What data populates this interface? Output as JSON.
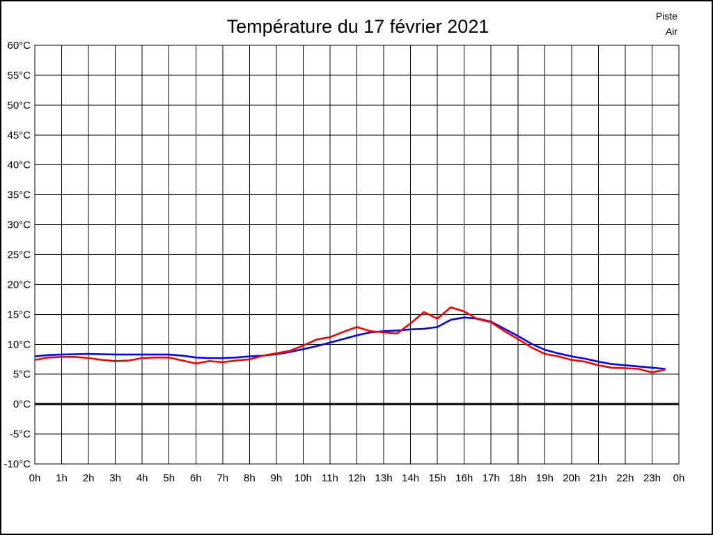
{
  "page": {
    "background": "#ffffff",
    "border_color": "#000000"
  },
  "chart_data": {
    "type": "line",
    "title": "Température du 17 février 2021",
    "grid": true,
    "legend_position": "top-right",
    "xlim": [
      0,
      24
    ],
    "ylim": [
      -10,
      60
    ],
    "x_axis": {
      "tick_values": [
        0,
        1,
        2,
        3,
        4,
        5,
        6,
        7,
        8,
        9,
        10,
        11,
        12,
        13,
        14,
        15,
        16,
        17,
        18,
        19,
        20,
        21,
        22,
        23,
        24
      ],
      "tick_labels": [
        "0h",
        "1h",
        "2h",
        "3h",
        "4h",
        "5h",
        "6h",
        "7h",
        "8h",
        "9h",
        "10h",
        "11h",
        "12h",
        "13h",
        "14h",
        "15h",
        "16h",
        "17h",
        "18h",
        "19h",
        "20h",
        "21h",
        "22h",
        "23h",
        "0h"
      ]
    },
    "y_axis": {
      "tick_values": [
        60,
        55,
        50,
        45,
        40,
        35,
        30,
        25,
        20,
        15,
        10,
        5,
        0,
        -5,
        -10
      ],
      "tick_labels": [
        "60°C",
        "55°C",
        "50°C",
        "45°C",
        "40°C",
        "35°C",
        "30°C",
        "25°C",
        "20°C",
        "15°C",
        "10°C",
        "5°C",
        "0°C",
        "-5°C",
        "-10°C"
      ]
    },
    "zero_line": {
      "value": 0,
      "color": "#000000"
    },
    "x": [
      0,
      0.5,
      1,
      1.5,
      2,
      2.5,
      3,
      3.5,
      4,
      4.5,
      5,
      5.5,
      6,
      6.5,
      7,
      7.5,
      8,
      8.5,
      9,
      9.5,
      10,
      10.5,
      11,
      11.5,
      12,
      12.5,
      13,
      13.5,
      14,
      14.5,
      15,
      15.5,
      16,
      16.5,
      17,
      17.5,
      18,
      18.5,
      19,
      19.5,
      20,
      20.5,
      21,
      21.5,
      22,
      22.5,
      23,
      23.5
    ],
    "series": [
      {
        "name": "Piste",
        "color": "#ff0000",
        "values": [
          7.4,
          7.8,
          7.9,
          7.9,
          7.7,
          7.4,
          7.2,
          7.3,
          7.7,
          7.8,
          7.8,
          7.3,
          6.8,
          7.2,
          7.0,
          7.3,
          7.5,
          8.1,
          8.5,
          8.9,
          9.8,
          10.8,
          11.2,
          12.1,
          12.9,
          12.2,
          12.0,
          11.8,
          13.5,
          15.4,
          14.3,
          16.2,
          15.5,
          14.2,
          13.7,
          12.2,
          10.9,
          9.5,
          8.4,
          8.0,
          7.4,
          7.1,
          6.5,
          6.1,
          6.0,
          5.9,
          5.3,
          5.8
        ]
      },
      {
        "name": "Air",
        "color": "#0000ff",
        "values": [
          8.0,
          8.2,
          8.3,
          8.35,
          8.4,
          8.35,
          8.3,
          8.3,
          8.3,
          8.3,
          8.3,
          8.1,
          7.8,
          7.7,
          7.7,
          7.8,
          8.0,
          8.1,
          8.35,
          8.7,
          9.2,
          9.7,
          10.3,
          10.9,
          11.5,
          12.0,
          12.2,
          12.3,
          12.5,
          12.6,
          12.9,
          14.1,
          14.5,
          14.3,
          13.8,
          12.6,
          11.4,
          10.1,
          9.1,
          8.5,
          8.0,
          7.6,
          7.1,
          6.7,
          6.5,
          6.3,
          6.1,
          5.9
        ]
      }
    ]
  }
}
